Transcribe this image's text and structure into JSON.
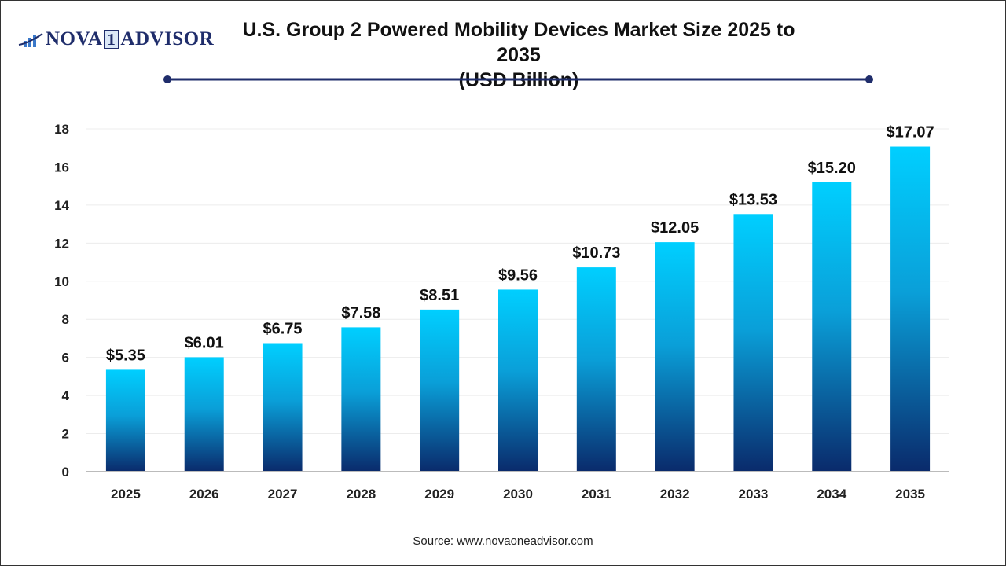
{
  "brand": {
    "logo_text_left": "NOVA",
    "logo_text_mid": "1",
    "logo_text_right": "ADVISOR"
  },
  "source": "Source: www.novaoneadvisor.com",
  "colors": {
    "bar_top": "#00cfff",
    "bar_bottom": "#0a2a6b",
    "accent_line": "#1f2d6b"
  },
  "chart_data": {
    "type": "bar",
    "title": "U.S. Group 2 Powered Mobility Devices Market Size 2025 to 2035",
    "subtitle": "(USD Billion)",
    "categories": [
      "2025",
      "2026",
      "2027",
      "2028",
      "2029",
      "2030",
      "2031",
      "2032",
      "2033",
      "2034",
      "2035"
    ],
    "values": [
      5.35,
      6.01,
      6.75,
      7.58,
      8.51,
      9.56,
      10.73,
      12.05,
      13.53,
      15.2,
      17.07
    ],
    "data_labels": [
      "$5.35",
      "$6.01",
      "$6.75",
      "$7.58",
      "$8.51",
      "$9.56",
      "$10.73",
      "$12.05",
      "$13.53",
      "$15.20",
      "$17.07"
    ],
    "yticks": [
      0,
      2,
      4,
      6,
      8,
      10,
      12,
      14,
      16,
      18
    ],
    "ylim": [
      0,
      18
    ],
    "xlabel": "",
    "ylabel": "",
    "grid": true,
    "legend": "none"
  }
}
